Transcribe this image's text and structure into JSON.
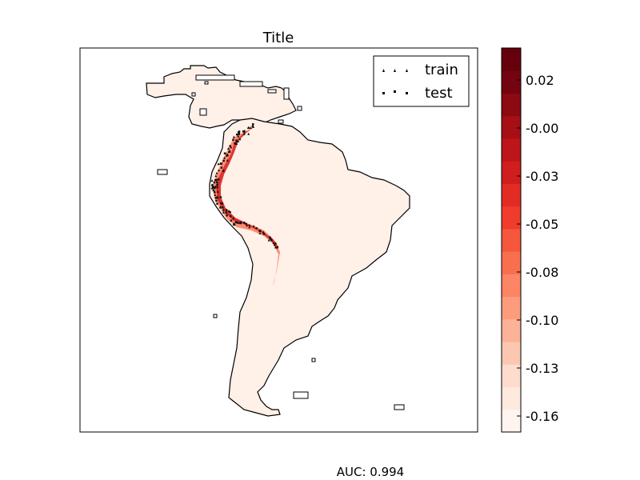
{
  "title": "Title",
  "footer": {
    "auc": "AUC: 0.994"
  },
  "legend": {
    "placement": "top-right",
    "items": [
      {
        "label": "train",
        "marker": "triangle-up"
      },
      {
        "label": "test",
        "marker": "x"
      }
    ]
  },
  "colorbar": {
    "colormap": "Reds",
    "range": [
      -0.17,
      0.04
    ],
    "levels": 20,
    "ticks": [
      "0.02",
      "-0.00",
      "-0.03",
      "-0.05",
      "-0.08",
      "-0.10",
      "-0.13",
      "-0.16"
    ],
    "colors": [
      "#fff5f0",
      "#fee9df",
      "#fedccd",
      "#fcc7b0",
      "#fcb296",
      "#fc9c7c",
      "#fb8564",
      "#f86f4e",
      "#f4573c",
      "#ef3c2c",
      "#e22b25",
      "#d01d1e",
      "#bc151a",
      "#a50f15",
      "#8c0a12",
      "#740510",
      "#67000d"
    ]
  },
  "colors": {
    "land": "#fff0e8",
    "coast": "#000000",
    "suitable_high": "#d82020",
    "suitable_mid": "#fb7a5a",
    "point": "#111111"
  }
}
